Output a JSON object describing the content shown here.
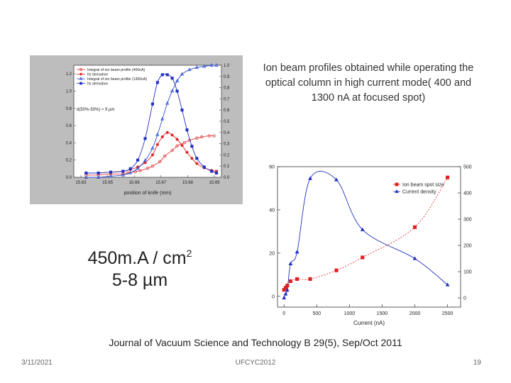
{
  "slide": {
    "caption": "Ion beam profiles obtained while operating the optical column in high current mode( 400 and 1300 nA at focused spot)",
    "big_line1": "450m.A / cm",
    "big_sup": "2",
    "big_line2": "5-8 µm",
    "journal": "Journal of Vacuum Science and Technology B 29(5), Sep/Oct 2011",
    "date": "3/11/2021",
    "footer_center": "UFCYC2012",
    "page_number": "19"
  },
  "chart_data": [
    {
      "type": "line",
      "xlabel": "position of knife (mm)",
      "ylabel_left": "",
      "ylabel_right": "",
      "x_ticks": [
        "15.63",
        "15.65",
        "15.66",
        "15.67",
        "15.68",
        "15.69"
      ],
      "y_left_ticks": [
        "0.0",
        "0.2",
        "0.4",
        "0.6",
        "0.8",
        "1.0",
        "1.2"
      ],
      "y_right_ticks": [
        "0.0",
        "0.1",
        "0.2",
        "0.3",
        "0.4",
        "0.5",
        "0.6",
        "0.7",
        "0.8",
        "0.9",
        "1.0"
      ],
      "annotation": "d(50%-50%) ≈ 9 µm",
      "xlim": [
        15.63,
        15.69
      ],
      "ylim_left": [
        0,
        1.3
      ],
      "ylim_right": [
        0,
        1.0
      ],
      "legend": "top-left",
      "series": [
        {
          "name": "Integral of ion beam profile (400nA)",
          "axis": "right",
          "color": "#e04040",
          "marker": "open-circle",
          "x": [
            15.635,
            15.64,
            15.645,
            15.65,
            15.652,
            15.655,
            15.657,
            15.66,
            15.662,
            15.665,
            15.667,
            15.67,
            15.672,
            15.675,
            15.677,
            15.68,
            15.682,
            15.685,
            15.687
          ],
          "y": [
            0.02,
            0.02,
            0.03,
            0.03,
            0.04,
            0.05,
            0.06,
            0.08,
            0.1,
            0.14,
            0.19,
            0.24,
            0.28,
            0.31,
            0.33,
            0.35,
            0.36,
            0.37,
            0.37
          ]
        },
        {
          "name": "Its derivative",
          "axis": "left",
          "color": "#e02020",
          "marker": "filled-circle",
          "x": [
            15.635,
            15.64,
            15.645,
            15.65,
            15.653,
            15.656,
            15.659,
            15.662,
            15.664,
            15.666,
            15.668,
            15.67,
            15.672,
            15.674,
            15.676,
            15.678,
            15.68,
            15.683,
            15.686,
            15.688
          ],
          "y": [
            0.05,
            0.05,
            0.06,
            0.07,
            0.09,
            0.12,
            0.17,
            0.26,
            0.38,
            0.47,
            0.52,
            0.49,
            0.44,
            0.37,
            0.29,
            0.22,
            0.16,
            0.11,
            0.08,
            0.07
          ]
        },
        {
          "name": "Integral of ion beam profile (1300nA)",
          "axis": "right",
          "color": "#3050d0",
          "marker": "open-triangle",
          "x": [
            15.635,
            15.64,
            15.645,
            15.65,
            15.653,
            15.656,
            15.659,
            15.662,
            15.664,
            15.666,
            15.668,
            15.67,
            15.672,
            15.674,
            15.677,
            15.68,
            15.683,
            15.686,
            15.688
          ],
          "y": [
            0.0,
            0.0,
            0.01,
            0.02,
            0.04,
            0.08,
            0.15,
            0.26,
            0.38,
            0.52,
            0.66,
            0.77,
            0.86,
            0.92,
            0.96,
            0.98,
            0.99,
            1.0,
            1.0
          ]
        },
        {
          "name": "Its derivative",
          "axis": "left",
          "color": "#2030c0",
          "marker": "filled-square",
          "x": [
            15.635,
            15.64,
            15.645,
            15.65,
            15.653,
            15.656,
            15.659,
            15.662,
            15.664,
            15.666,
            15.668,
            15.67,
            15.672,
            15.674,
            15.676,
            15.678,
            15.68,
            15.683,
            15.686,
            15.688
          ],
          "y": [
            0.05,
            0.05,
            0.06,
            0.07,
            0.1,
            0.2,
            0.45,
            0.85,
            1.1,
            1.19,
            1.19,
            1.15,
            1.0,
            0.78,
            0.55,
            0.36,
            0.22,
            0.12,
            0.07,
            0.05
          ]
        }
      ]
    },
    {
      "type": "scatter",
      "xlabel": "Current (nA)",
      "ylabel_left": "",
      "ylabel_right": "",
      "x_ticks": [
        "0",
        "500",
        "1000",
        "1500",
        "2000",
        "2500"
      ],
      "y_left_ticks": [
        "0",
        "20",
        "40",
        "60"
      ],
      "y_right_ticks": [
        "0",
        "100",
        "200",
        "300",
        "400",
        "500"
      ],
      "xlim": [
        -100,
        2700
      ],
      "ylim_left": [
        -5,
        60
      ],
      "ylim_right": [
        -35,
        500
      ],
      "legend": "top-right",
      "series": [
        {
          "name": "Ion beam spot size",
          "axis": "left",
          "color": "#e02020",
          "marker": "square",
          "x": [
            0,
            25,
            50,
            100,
            200,
            400,
            800,
            1200,
            2000,
            2500
          ],
          "y": [
            3,
            4,
            5,
            7,
            8,
            8,
            12,
            18,
            32,
            55
          ]
        },
        {
          "name": "Current density",
          "axis": "right",
          "color": "#2030c0",
          "marker": "triangle",
          "x": [
            0,
            25,
            50,
            100,
            200,
            400,
            800,
            1200,
            2000,
            2500
          ],
          "y": [
            0,
            15,
            30,
            130,
            175,
            455,
            450,
            260,
            150,
            50
          ]
        }
      ]
    }
  ]
}
